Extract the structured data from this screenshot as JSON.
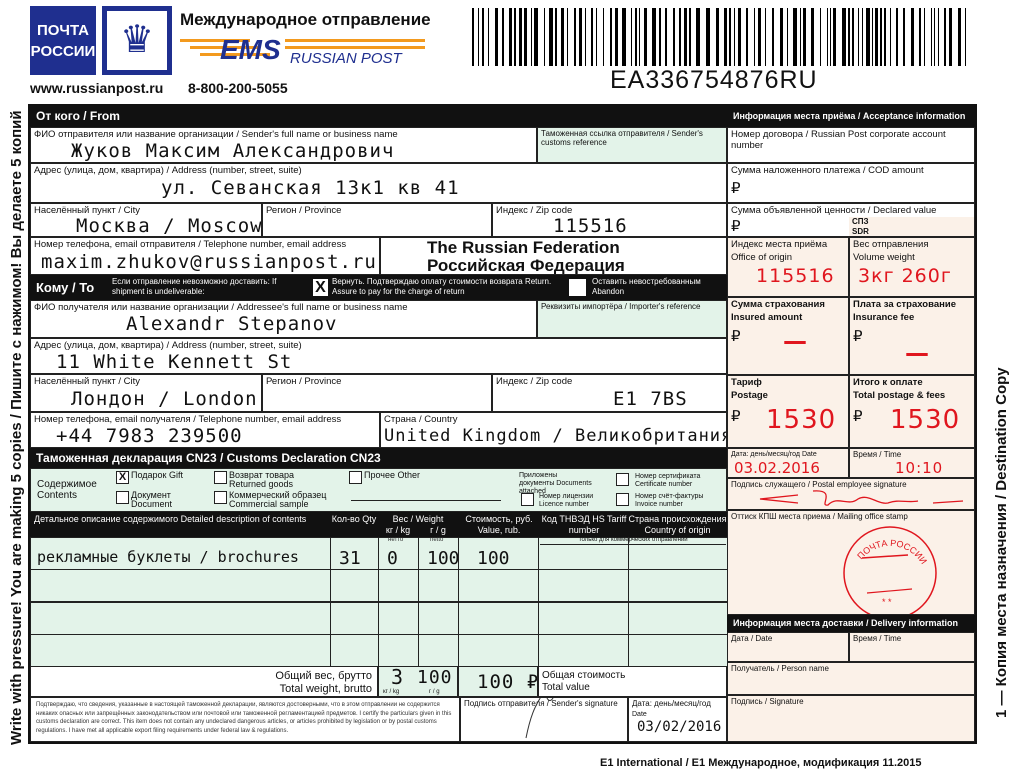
{
  "header": {
    "logo_text_1": "ПОЧТА",
    "logo_text_2": "РОССИИ",
    "title": "Международное отправление",
    "ems": "EMS",
    "russian_post": "RUSSIAN POST",
    "website": "www.russianpost.ru",
    "phone": "8-800-200-5055",
    "tracking_number": "EA336754876RU"
  },
  "side_left": "Write with pressure! You are making 5 copies / Пишите с нажимом! Вы делаете 5 копий",
  "side_right": "1 — Копия места назначения  /  Destination Copy",
  "footer": "E1 International / E1 Международное, модификация 11.2015",
  "from": {
    "title": "От кого / From",
    "name_label": "ФИО отправителя или название организации / Sender's full name or business name",
    "name": "Жуков Максим Александрович",
    "customs_ref_label": "Таможенная ссылка отправителя / Sender's customs reference",
    "address_label": "Адрес (улица, дом, квартира) / Address (number, street, suite)",
    "address": "ул. Севанская 13к1 кв 41",
    "city_label": "Населённый пункт / City",
    "city": "Москва / Moscow",
    "region_label": "Регион / Province",
    "zip_label": "Индекс / Zip code",
    "zip": "115516",
    "phone_label": "Номер телефона, email отправителя / Telephone number, email address",
    "phone": "maxim.zhukov@russianpost.ru",
    "country_en": "The Russian Federation",
    "country_ru": "Российская Федерация"
  },
  "to": {
    "title": "Кому / To",
    "undeliverable_label": "Если отправление невозможно доставить: If shipment is undeliverable:",
    "return_label": "Вернуть. Подтверждаю оплату стоимости возврата Return. Assure to pay for the charge of return",
    "return_checked": true,
    "abandon_label": "Оставить невостребованным Abandon",
    "abandon_checked": false,
    "name_label": "ФИО получателя или название организации / Addressee's full name or business name",
    "name": "Alexandr Stepanov",
    "importer_ref_label": "Реквизиты импортёра / Importer's reference",
    "address_label": "Адрес (улица, дом, квартира) / Address (number, street, suite)",
    "address": "11 White Kennett St",
    "city_label": "Населённый пункт / City",
    "city": "Лондон / London",
    "region_label": "Регион / Province",
    "zip_label": "Индекс / Zip code",
    "zip": "E1 7BS",
    "phone_label": "Номер телефона, email получателя / Telephone number, email address",
    "phone": "+44 7983 239500",
    "country_label": "Страна / Country",
    "country": "United Kingdom / Великобритания"
  },
  "customs": {
    "title": "Таможенная декларация CN23 / Customs Declaration CN23",
    "contents_label": "Содержимое Contents",
    "options": [
      {
        "label": "Подарок Gift",
        "checked": true
      },
      {
        "label": "Документ Document",
        "checked": false
      },
      {
        "label": "Возврат товара Returned goods",
        "checked": false
      },
      {
        "label": "Коммерческий образец Commercial sample",
        "checked": false
      },
      {
        "label": "Прочее Other",
        "checked": false
      }
    ],
    "docs_attached": "Приложены документы Documents attached",
    "licence": "Номер лицензии Licence number",
    "certificate": "Номер сертификата Certificate number",
    "invoice": "Номер счёт-фактуры Invoice number",
    "columns": {
      "desc": "Детальное описание содержимого Detailed description of contents",
      "qty": "Кол-во Qty",
      "weight": "Вес / Weight",
      "kg": "кг / kg",
      "g": "г / g",
      "value": "Стоимость, руб. Value, rub.",
      "hs": "Код ТНВЭД HS Tariff number",
      "origin": "Страна происхождения Country of origin",
      "netto_ru": "нетто",
      "netto_en": "netto",
      "commercial_only": "Только для коммерческих отправлений"
    },
    "rows": [
      {
        "desc": "рекламные буклеты / brochures",
        "qty": "31",
        "kg": "0",
        "g": "100",
        "value": "100",
        "hs": "",
        "origin": ""
      },
      {},
      {},
      {}
    ],
    "total_weight_label_ru": "Общий вес, брутто",
    "total_weight_label_en": "Total weight, brutto",
    "total_kg": "3",
    "total_g": "100",
    "kg_unit": "кг / kg",
    "g_unit": "г / g",
    "total_value": "100 ₽",
    "total_value_label_ru": "Общая стоимость",
    "total_value_label_en": "Total value",
    "certify_text": "Подтверждаю, что сведения, указанные в настоящей таможенной декларации, являются достоверными, что в этом отправлении не содержится никаких опасных или запрещённых законодательством или почтовой или таможенной регламентацией предметов. I certify the particulars given in this customs declaration are correct. This item does not contain any undeclared dangerous articles, or articles prohibited by legislation or by postal customs regulations. I have met all applicable export filing requirements under federal law & regulations.",
    "signature_label": "Подпись отправителя / Sender's signature",
    "date_label_ru": "Дата: день/месяц/год",
    "date_label_en": "Date",
    "date": "03/02/2016"
  },
  "acceptance": {
    "title": "Информация места приёма / Acceptance information",
    "account_label": "Номер договора / Russian Post corporate account number",
    "cod_label": "Сумма наложенного платежа / COD amount",
    "declared_label": "Сумма объявленной ценности / Declared value",
    "sdr_ru": "СПЗ",
    "sdr_en": "SDR",
    "rub": "₽",
    "office_label_ru": "Индекс места приёма",
    "office_label_en": "Office of origin",
    "office": "115516",
    "volume_label_ru": "Вес отправления",
    "volume_label_en": "Volume weight",
    "volume": "3кг 260г",
    "insured_label_ru": "Сумма страхования",
    "insured_label_en": "Insured amount",
    "insured": "—",
    "fee_label_ru": "Плата за страхование",
    "fee_label_en": "Insurance fee",
    "fee": "—",
    "postage_label_ru": "Тариф",
    "postage_label_en": "Postage",
    "postage": "1530",
    "total_label_ru": "Итого к оплате",
    "total_label_en": "Total postage & fees",
    "total": "1530",
    "date_label_ru": "Дата: день/месяц/год",
    "date_label_en": "Date",
    "date": "03.02.2016",
    "time_label": "Время / Time",
    "time": "10:10",
    "employee_sig_label": "Подпись служащего / Postal employee signature",
    "stamp_label": "Оттиск КПШ места приема / Mailing office stamp",
    "stamp_text": "ПОЧТА РОССИИ"
  },
  "delivery": {
    "title": "Информация места доставки / Delivery information",
    "date_label": "Дата / Date",
    "time_label": "Время / Time",
    "person_label": "Получатель / Person name",
    "signature_label": "Подпись / Signature"
  },
  "colors": {
    "green_cell": "#e3f3e9",
    "peach_cell": "#fbf1e8",
    "brand_blue": "#1f2f8f",
    "ems_orange": "#f39a1e",
    "ink_red": "#e0161e"
  }
}
